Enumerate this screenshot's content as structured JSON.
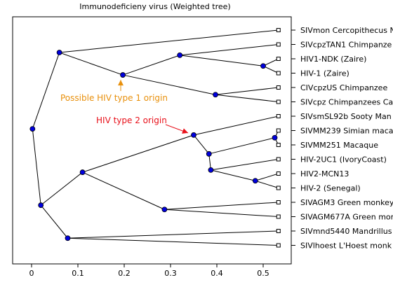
{
  "chart_data": {
    "type": "tree",
    "title": "Immunodeficieny virus (Weighted tree)",
    "xlim": [
      -0.02,
      0.55
    ],
    "x_ticks": [
      0,
      0.1,
      0.2,
      0.3,
      0.4,
      0.5
    ],
    "x_tick_labels": [
      "0",
      "0.1",
      "0.2",
      "0.3",
      "0.4",
      "0.5"
    ],
    "grid": false,
    "leaf_x": 0.533,
    "leaves": [
      {
        "id": "L0",
        "label": "SIVmon Cercopithecus N"
      },
      {
        "id": "L1",
        "label": "SIVcpzTAN1 Chimpanze"
      },
      {
        "id": "L2",
        "label": "HIV1-NDK (Zaire)"
      },
      {
        "id": "L3",
        "label": "HIV-1 (Zaire)"
      },
      {
        "id": "L4",
        "label": "CIVcpzUS Chimpanzee"
      },
      {
        "id": "L5",
        "label": "SIVcpz Chimpanzees Ca"
      },
      {
        "id": "L6",
        "label": "SIVsmSL92b Sooty Man"
      },
      {
        "id": "L7",
        "label": "SIVMM239 Simian maca"
      },
      {
        "id": "L8",
        "label": "SIVMM251 Macaque"
      },
      {
        "id": "L9",
        "label": "HIV-2UC1 (IvoryCoast)"
      },
      {
        "id": "L10",
        "label": "HIV2-MCN13"
      },
      {
        "id": "L11",
        "label": "HIV-2 (Senegal)"
      },
      {
        "id": "L12",
        "label": "SIVAGM3 Green monkey"
      },
      {
        "id": "L13",
        "label": "SIVAGM677A Green mon"
      },
      {
        "id": "L14",
        "label": "SIVmnd5440 Mandrillus"
      },
      {
        "id": "L15",
        "label": "SIVlhoest L'Hoest monk"
      }
    ],
    "nodes": [
      {
        "id": "n_hiv1",
        "x": 0.002,
        "children": [
          "n_root",
          "n_a"
        ]
      },
      {
        "id": "n_a",
        "x": 0.06,
        "children": [
          "L0",
          "n_b"
        ]
      },
      {
        "id": "n_b",
        "x": 0.197,
        "children": [
          "n_c",
          "n_f"
        ]
      },
      {
        "id": "n_c",
        "x": 0.32,
        "children": [
          "L1",
          "n_d"
        ]
      },
      {
        "id": "n_d",
        "x": 0.5,
        "children": [
          "L2",
          "L3"
        ]
      },
      {
        "id": "n_f",
        "x": 0.397,
        "children": [
          "L4",
          "L5"
        ]
      },
      {
        "id": "n_root",
        "x": 0.02,
        "children": [
          "n_g",
          "n_l"
        ]
      },
      {
        "id": "n_g",
        "x": 0.11,
        "children": [
          "n_h",
          "n_k"
        ]
      },
      {
        "id": "n_h",
        "x": 0.35,
        "children": [
          "L6",
          "n_i"
        ]
      },
      {
        "id": "n_i",
        "x": 0.383,
        "children": [
          "n_m",
          "n_j"
        ]
      },
      {
        "id": "n_m",
        "x": 0.525,
        "children": [
          "L7",
          "L8"
        ]
      },
      {
        "id": "n_j",
        "x": 0.387,
        "children": [
          "L9",
          "n_n"
        ]
      },
      {
        "id": "n_n",
        "x": 0.483,
        "children": [
          "L10",
          "L11"
        ]
      },
      {
        "id": "n_k",
        "x": 0.287,
        "children": [
          "L12",
          "L13"
        ]
      },
      {
        "id": "n_l",
        "x": 0.078,
        "children": [
          "L14",
          "L15"
        ]
      }
    ],
    "annotations": [
      {
        "text": "Possible HIV type 1 origin",
        "color": "#e8900c",
        "points_to": "n_b"
      },
      {
        "text": "HIV type 2 origin",
        "color": "#e8101a",
        "points_to": "n_h"
      }
    ],
    "colors": {
      "node": "#0000dd",
      "line": "#000000",
      "leaf_marker": "#ffffff"
    }
  }
}
